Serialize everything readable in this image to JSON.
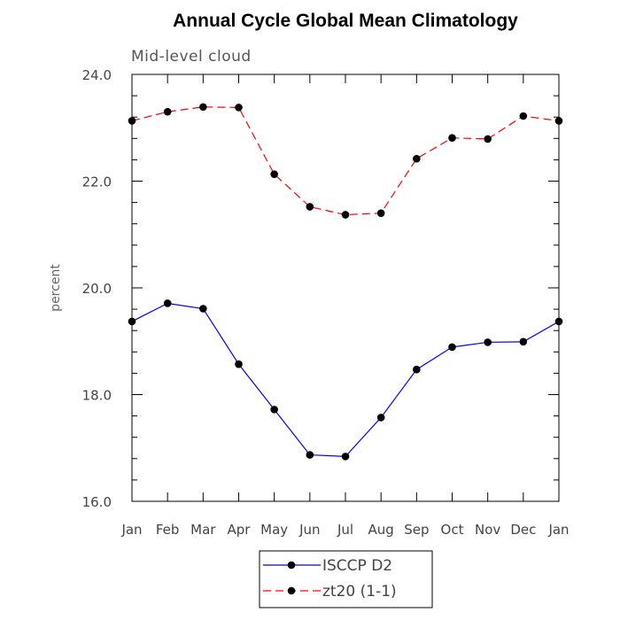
{
  "chart_data": {
    "type": "line",
    "title": "Annual Cycle Global Mean Climatology",
    "subtitle": "Mid-level cloud",
    "xlabel": "",
    "ylabel": "percent",
    "categories": [
      "Jan",
      "Feb",
      "Mar",
      "Apr",
      "May",
      "Jun",
      "Jul",
      "Aug",
      "Sep",
      "Oct",
      "Nov",
      "Dec",
      "Jan"
    ],
    "ylim": [
      16.0,
      24.0
    ],
    "yticks": [
      "16.0",
      "18.0",
      "20.0",
      "22.0",
      "24.0"
    ],
    "grid": false,
    "legend_position": "bottom-center",
    "series": [
      {
        "name": "ISCCP D2",
        "color": "#0000ff",
        "line_style": "solid",
        "marker": "filled-circle",
        "values": [
          19.37,
          19.71,
          19.61,
          18.57,
          17.72,
          16.87,
          16.84,
          17.57,
          18.47,
          18.89,
          18.98,
          18.99,
          19.37
        ]
      },
      {
        "name": "zt20 (1-1)",
        "color": "#ff0000",
        "line_style": "dashed",
        "marker": "filled-circle",
        "values": [
          23.13,
          23.3,
          23.39,
          23.38,
          22.13,
          21.52,
          21.37,
          21.4,
          22.42,
          22.81,
          22.79,
          23.22,
          23.13
        ]
      }
    ]
  }
}
